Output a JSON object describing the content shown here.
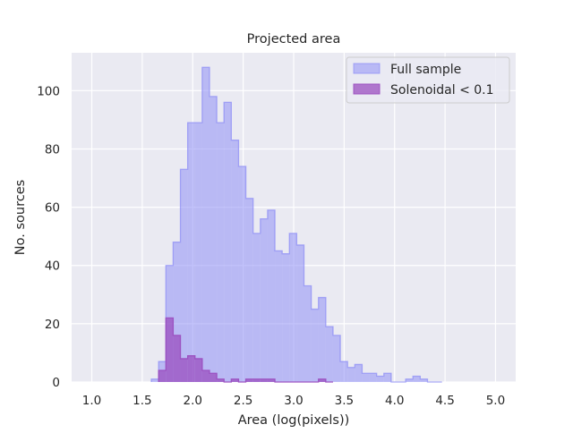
{
  "chart_data": {
    "type": "histogram",
    "title": "Projected area",
    "xlabel": "Area (log(pixels))",
    "ylabel": "No. sources",
    "xlim": [
      0.8,
      5.2
    ],
    "ylim": [
      0,
      113
    ],
    "xticks": [
      "1.0",
      "1.5",
      "2.0",
      "2.5",
      "3.0",
      "3.5",
      "4.0",
      "4.5",
      "5.0"
    ],
    "yticks": [
      "0",
      "20",
      "40",
      "60",
      "80",
      "100"
    ],
    "grid": true,
    "legend_position": "top-right",
    "bin_width": 0.072,
    "series": [
      {
        "name": "Full sample",
        "color": "#8f8ff5",
        "bin_starts": [
          1.59,
          1.662,
          1.734,
          1.806,
          1.878,
          1.95,
          2.022,
          2.094,
          2.166,
          2.238,
          2.31,
          2.382,
          2.454,
          2.526,
          2.598,
          2.67,
          2.742,
          2.814,
          2.886,
          2.958,
          3.03,
          3.102,
          3.174,
          3.246,
          3.318,
          3.39,
          3.462,
          3.534,
          3.606,
          3.678,
          3.75,
          3.822,
          3.894,
          3.966,
          4.038,
          4.11,
          4.182,
          4.254,
          4.326,
          4.398
        ],
        "counts": [
          1,
          7,
          40,
          48,
          73,
          89,
          89,
          108,
          98,
          89,
          96,
          83,
          74,
          63,
          51,
          56,
          59,
          45,
          44,
          51,
          47,
          33,
          25,
          29,
          19,
          16,
          7,
          5,
          6,
          3,
          3,
          2,
          3,
          0,
          0,
          1,
          2,
          1,
          0,
          0
        ]
      },
      {
        "name": "Solenoidal < 0.1",
        "color": "#9b4fc0",
        "bin_starts": [
          1.662,
          1.734,
          1.806,
          1.878,
          1.95,
          2.022,
          2.094,
          2.166,
          2.238,
          2.31,
          2.382,
          2.454,
          2.526,
          2.598,
          2.67,
          2.742,
          2.814,
          2.886,
          2.958,
          3.03,
          3.102,
          3.174,
          3.246,
          3.318
        ],
        "counts": [
          4,
          22,
          16,
          8,
          9,
          8,
          4,
          3,
          1,
          0,
          1,
          0,
          1,
          1,
          1,
          1,
          0,
          0,
          0,
          0,
          0,
          0,
          1,
          0
        ]
      }
    ]
  }
}
